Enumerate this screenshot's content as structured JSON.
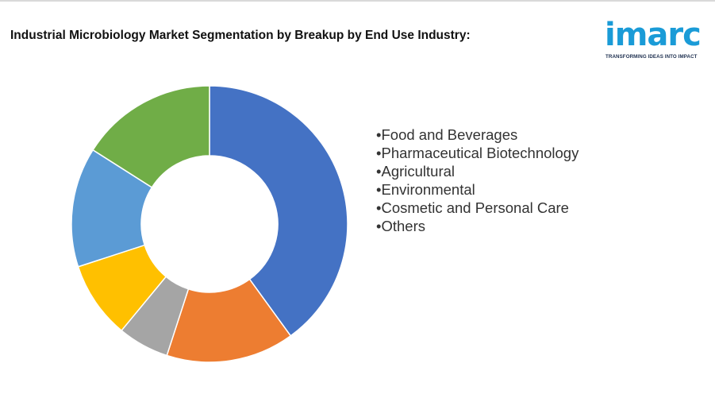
{
  "header": {
    "title": "Industrial Microbiology Market Segmentation by Breakup by End Use Industry:"
  },
  "logo": {
    "wordmark": "imarc",
    "tagline": "TRANSFORMING IDEAS INTO IMPACT",
    "color": "#1a9bd7"
  },
  "chart_data": {
    "type": "pie",
    "subtype": "donut",
    "title": "Industrial Microbiology Market Segmentation by Breakup by End Use Industry:",
    "categories": [
      "Food and Beverages",
      "Pharmaceutical Biotechnology",
      "Agricultural",
      "Environmental",
      "Cosmetic and Personal Care",
      "Others"
    ],
    "legend_bullet": "•",
    "legend_position": "right",
    "slices": [
      {
        "color": "#4472c4",
        "value": 40
      },
      {
        "color": "#ed7d31",
        "value": 15
      },
      {
        "color": "#a5a5a5",
        "value": 6
      },
      {
        "color": "#ffc000",
        "value": 9
      },
      {
        "color": "#5b9bd5",
        "value": 14
      },
      {
        "color": "#70ad47",
        "value": 16
      }
    ]
  }
}
